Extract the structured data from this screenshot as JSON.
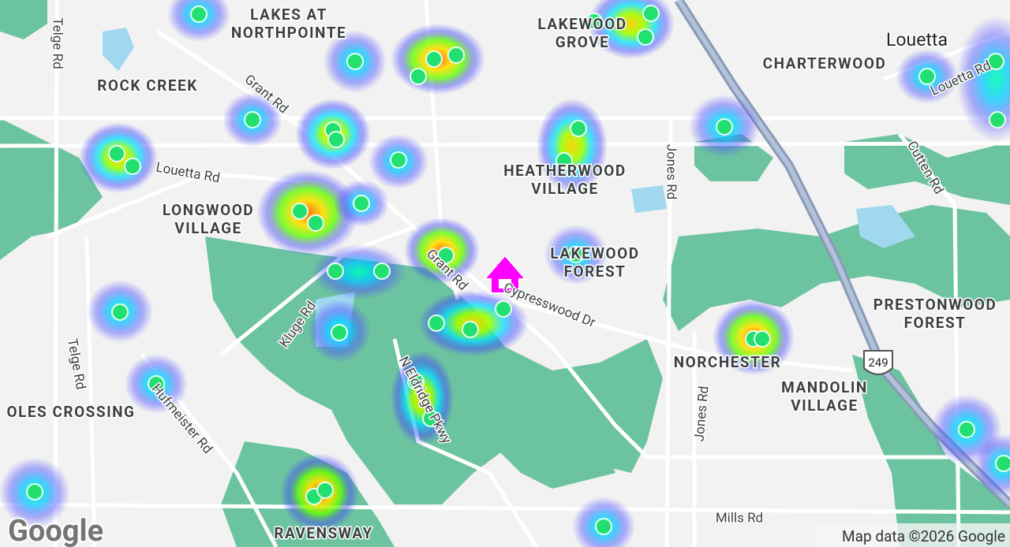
{
  "labels": [
    {
      "lines": [
        "LAKES AT",
        "NORTHPOINTE"
      ]
    },
    {
      "lines": [
        "LAKEWOOD",
        "GROVE"
      ]
    },
    {
      "lines": [
        "CHARTERWOOD"
      ]
    },
    {
      "lines": [
        "ROCK CREEK"
      ]
    },
    {
      "lines": [
        "HEATHERWOOD",
        "VILLAGE"
      ]
    },
    {
      "lines": [
        "LONGWOOD",
        "VILLAGE"
      ]
    },
    {
      "lines": [
        "LAKEWOOD",
        "FOREST"
      ]
    },
    {
      "lines": [
        "PRESTONWOOD",
        "FOREST"
      ]
    },
    {
      "lines": [
        "NORCHESTER"
      ]
    },
    {
      "lines": [
        "MANDOLIN",
        "VILLAGE"
      ]
    },
    {
      "lines": [
        "OLES CROSSING"
      ]
    },
    {
      "lines": [
        "RAVENSWAY"
      ]
    }
  ],
  "city": "Louetta",
  "roads": [
    "Telge Rd",
    "Grant Rd",
    "Louetta Rd",
    "Jones Rd",
    "Cutten Rd",
    "Louetta Rd",
    "Grant Rd",
    "Cypresswood Dr",
    "Kluge Rd",
    "Telge Rd",
    "Hufmeister Rd",
    "N Eldridge Pkwy",
    "Jones Rd",
    "Mills Rd"
  ],
  "shield": "249",
  "attribution": "Map data ©2026 Google",
  "logo": "Google"
}
